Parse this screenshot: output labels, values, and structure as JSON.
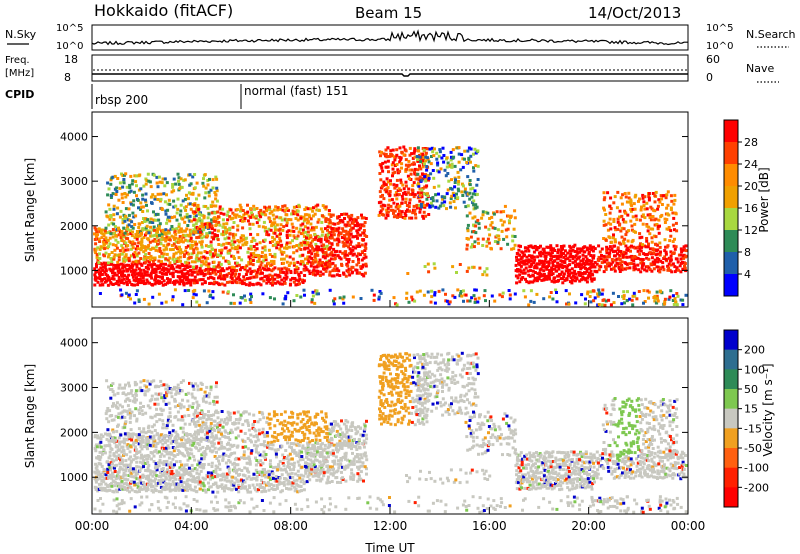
{
  "header": {
    "station": "Hokkaido (fitACF)",
    "beam": "Beam 15",
    "date": "14/Oct/2013"
  },
  "top_panels": {
    "nsky": {
      "label": "N.Sky",
      "ticks": [
        "10^5",
        "10^0"
      ],
      "right_ticks": [
        "10^5",
        "10^0"
      ],
      "right_label": "N.Search"
    },
    "freq": {
      "label": "Freq.",
      "unit": "[MHz]",
      "ticks": [
        "18",
        "8"
      ],
      "right_ticks": [
        "60",
        "0"
      ],
      "right_label": "Nave"
    },
    "cpid": {
      "label": "CPID",
      "modes": [
        {
          "name": "rbsp 200",
          "start_hour": 0
        },
        {
          "name": "normal (fast) 151",
          "start_hour": 6
        }
      ]
    }
  },
  "chart_data": [
    {
      "type": "heatmap",
      "name": "power",
      "ylabel": "Slant Range [km]",
      "ylim": [
        180,
        4550
      ],
      "yticks": [
        1000,
        2000,
        3000,
        4000
      ],
      "xlim": [
        0,
        24
      ],
      "colorbar_label": "Power [dB]",
      "colorbar_ticks": [
        "28",
        "24",
        "20",
        "16",
        "12",
        "8",
        "4"
      ],
      "colorbar_colors": [
        "#ff0000",
        "#ff4000",
        "#ff8c00",
        "#f0a000",
        "#a8d840",
        "#2e8b57",
        "#1f5faa",
        "#0000ff"
      ]
    },
    {
      "type": "heatmap",
      "name": "velocity",
      "ylabel": "Slant Range [km]",
      "ylim": [
        180,
        4550
      ],
      "yticks": [
        1000,
        2000,
        3000,
        4000
      ],
      "xlim": [
        0,
        24
      ],
      "xticks": [
        "00:00",
        "04:00",
        "08:00",
        "12:00",
        "16:00",
        "20:00",
        "00:00"
      ],
      "xlabel": "Time UT",
      "colorbar_label": "Velocity [m s⁻¹]",
      "colorbar_ticks": [
        "200",
        "100",
        "50",
        "15",
        "-15",
        "-50",
        "-100",
        "-200"
      ],
      "colorbar_colors": [
        "#0000cc",
        "#2e6e90",
        "#2e8b57",
        "#7ec850",
        "#c8c8c0",
        "#f0a020",
        "#ff6010",
        "#ff2000",
        "#ff0000"
      ]
    }
  ]
}
